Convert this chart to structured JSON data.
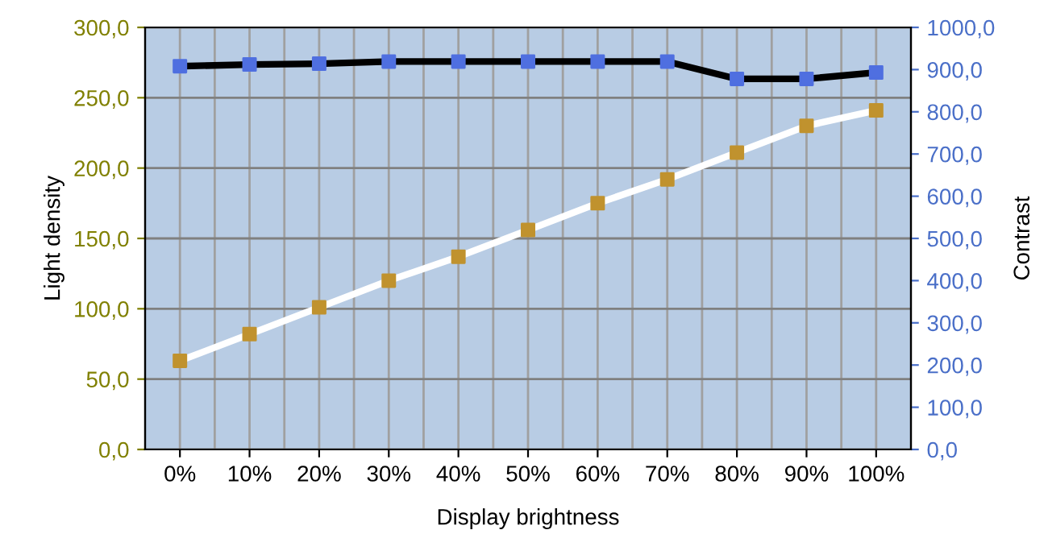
{
  "chart_data": {
    "type": "line",
    "xlabel": "Display brightness",
    "ylabel": "Light density",
    "y2label": "Contrast",
    "categories": [
      "0%",
      "10%",
      "20%",
      "30%",
      "40%",
      "50%",
      "60%",
      "70%",
      "80%",
      "90%",
      "100%"
    ],
    "series": [
      {
        "color": "#ffffff",
        "colors": [
          "#c0922e",
          "#c0922e",
          "#c0922e",
          "#c0922e",
          "#c0922e",
          "#c0922e",
          "#c0922e",
          "#c0922e",
          "#c0922e",
          "#c0922e",
          "#c0922e"
        ],
        "values": [
          63,
          82,
          101,
          120,
          137,
          156,
          175,
          192,
          211,
          230,
          241
        ]
      },
      {
        "color": "#000000",
        "colors": [
          "#4f6fe0",
          "#4f6fe0",
          "#4f6fe0",
          "#4f6fe0",
          "#4f6fe0",
          "#4f6fe0",
          "#4f6fe0",
          "#4f6fe0",
          "#4f6fe0",
          "#4f6fe0",
          "#4f6fe0"
        ],
        "axis": "y2",
        "values": [
          908,
          912,
          914,
          919,
          919,
          919,
          919,
          919,
          878,
          878,
          893
        ]
      }
    ],
    "ylim": [
      0,
      300
    ],
    "yticks": [
      {
        "value": 0,
        "label": "0,0"
      },
      {
        "value": 50,
        "label": "50,0"
      },
      {
        "value": 100,
        "label": "100,0"
      },
      {
        "value": 150,
        "label": "150,0"
      },
      {
        "value": 200,
        "label": "200,0"
      },
      {
        "value": 250,
        "label": "250,0"
      },
      {
        "value": 300,
        "label": "300,0"
      }
    ],
    "y2lim": [
      0,
      1000
    ],
    "y2ticks": [
      {
        "value": 0,
        "label": "0,0"
      },
      {
        "value": 100,
        "label": "100,0"
      },
      {
        "value": 200,
        "label": "200,0"
      },
      {
        "value": 300,
        "label": "300,0"
      },
      {
        "value": 400,
        "label": "400,0"
      },
      {
        "value": 500,
        "label": "500,0"
      },
      {
        "value": 600,
        "label": "600,0"
      },
      {
        "value": 700,
        "label": "700,0"
      },
      {
        "value": 800,
        "label": "800,0"
      },
      {
        "value": 900,
        "label": "900,0"
      },
      {
        "value": 1000,
        "label": "1000,0"
      }
    ],
    "grid": true,
    "marker": "square",
    "line_style": "solid",
    "legend": false
  }
}
